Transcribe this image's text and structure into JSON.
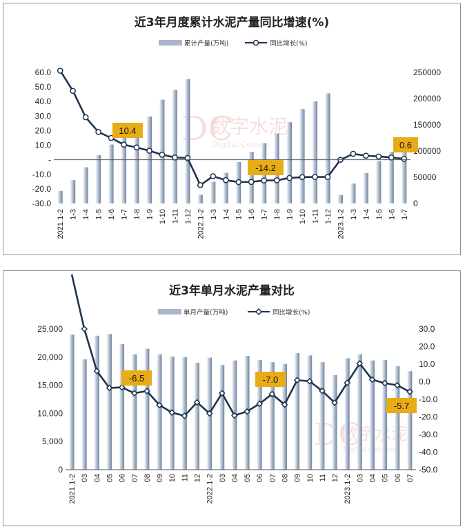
{
  "chart_data": [
    {
      "type": "bar+line",
      "title": "近3年月度累计水泥产量同比增速(%)",
      "legend": [
        "累计产量(万吨)",
        "同比增长(%)"
      ],
      "legend_position": "top",
      "categories": [
        "2021.1-2",
        "1-3",
        "1-4",
        "1-5",
        "1-6",
        "1-7",
        "1-8",
        "1-9",
        "1-10",
        "1-11",
        "1-12",
        "2022.1-2",
        "1-3",
        "1-4",
        "1-5",
        "1-6",
        "1-7",
        "1-8",
        "1-9",
        "1-10",
        "1-11",
        "1-12",
        "2023.1-2",
        "1-3",
        "1-4",
        "1-5",
        "1-6",
        "1-7"
      ],
      "y_left_ticks": [
        "60.0",
        "50.0",
        "40.0",
        "30.0",
        "20.0",
        "10.0",
        "-",
        "-10.0",
        "-20.0",
        "-30.0"
      ],
      "y_right_ticks": [
        "250000",
        "200000",
        "150000",
        "100000",
        "50000",
        "0"
      ],
      "ylim_left": [
        -30,
        60
      ],
      "ylim_right": [
        0,
        250000
      ],
      "series": [
        {
          "name": "累计产量(万吨)",
          "axis": "right",
          "values": [
            24000,
            44500,
            69000,
            92000,
            112500,
            128000,
            144500,
            166000,
            198000,
            217000,
            237500,
            16500,
            41500,
            58500,
            79000,
            98500,
            115000,
            133500,
            155000,
            180000,
            195000,
            210000,
            16000,
            38000,
            58000,
            81000,
            98500,
            108500
          ]
        },
        {
          "name": "同比增长(%)",
          "axis": "left",
          "values": [
            61.2,
            47.3,
            29.2,
            19.1,
            15.0,
            10.4,
            8.5,
            6.2,
            3.5,
            1.6,
            1.2,
            -17.4,
            -11.3,
            -14.0,
            -15.3,
            -15.2,
            -14.2,
            -14.1,
            -12.5,
            -11.9,
            -11.8,
            -11.8,
            0.0,
            4.1,
            2.8,
            2.3,
            1.6,
            0.6
          ]
        }
      ],
      "callouts": [
        {
          "category": "1-7",
          "label": "10.4"
        },
        {
          "category": "1-7",
          "label": "-14.2"
        },
        {
          "category": "1-7",
          "label": "0.6"
        }
      ],
      "watermark": [
        "数字水泥",
        "Digital Cement"
      ]
    },
    {
      "type": "bar+line",
      "title": "近3年单月水泥产量对比",
      "legend": [
        "单月产量(万吨)",
        "同比增长(%)"
      ],
      "legend_position": "top",
      "categories": [
        "2021.1-2",
        "03",
        "04",
        "05",
        "06",
        "07",
        "08",
        "09",
        "10",
        "11",
        "12",
        "2022.1-2",
        "03",
        "04",
        "05",
        "06",
        "07",
        "08",
        "09",
        "10",
        "11",
        "12",
        "2023.1-2",
        "03",
        "04",
        "05",
        "06",
        "07"
      ],
      "y_left_ticks": [
        "25,000",
        "20,000",
        "15,000",
        "10,000",
        "5,000",
        "0"
      ],
      "y_right_ticks": [
        "30.0",
        "20.0",
        "10.0",
        "0.0",
        "-10.0",
        "-20.0",
        "-30.0",
        "-40.0",
        "-50.0"
      ],
      "ylim_left": [
        0,
        25000
      ],
      "ylim_right": [
        -50,
        30
      ],
      "series": [
        {
          "name": "单月产量(万吨)",
          "axis": "left",
          "values": [
            24000,
            19600,
            23800,
            24100,
            22300,
            20500,
            21500,
            20500,
            20100,
            20000,
            19000,
            19900,
            18600,
            19400,
            20200,
            19500,
            19100,
            18800,
            20700,
            20300,
            19100,
            16800,
            19800,
            20500,
            19400,
            19500,
            18400,
            17500
          ]
        },
        {
          "name": "同比增长(%)",
          "axis": "right",
          "values": [
            61.0,
            30.0,
            6.1,
            -3.5,
            -3.2,
            -6.5,
            -5.3,
            -13.3,
            -17.5,
            -19.4,
            -11.7,
            -18.0,
            -6.5,
            -19.2,
            -16.9,
            -12.5,
            -7.0,
            -13.0,
            0.9,
            0.3,
            -5.2,
            -11.9,
            -0.6,
            10.4,
            1.2,
            -0.8,
            -2.0,
            -5.7
          ]
        }
      ],
      "callouts": [
        {
          "category": "07",
          "label": "-6.5"
        },
        {
          "category": "07",
          "label": "-7.0"
        },
        {
          "category": "07",
          "label": "-5.7"
        }
      ],
      "watermark": [
        "数字水泥",
        "Digital Cement"
      ]
    }
  ]
}
